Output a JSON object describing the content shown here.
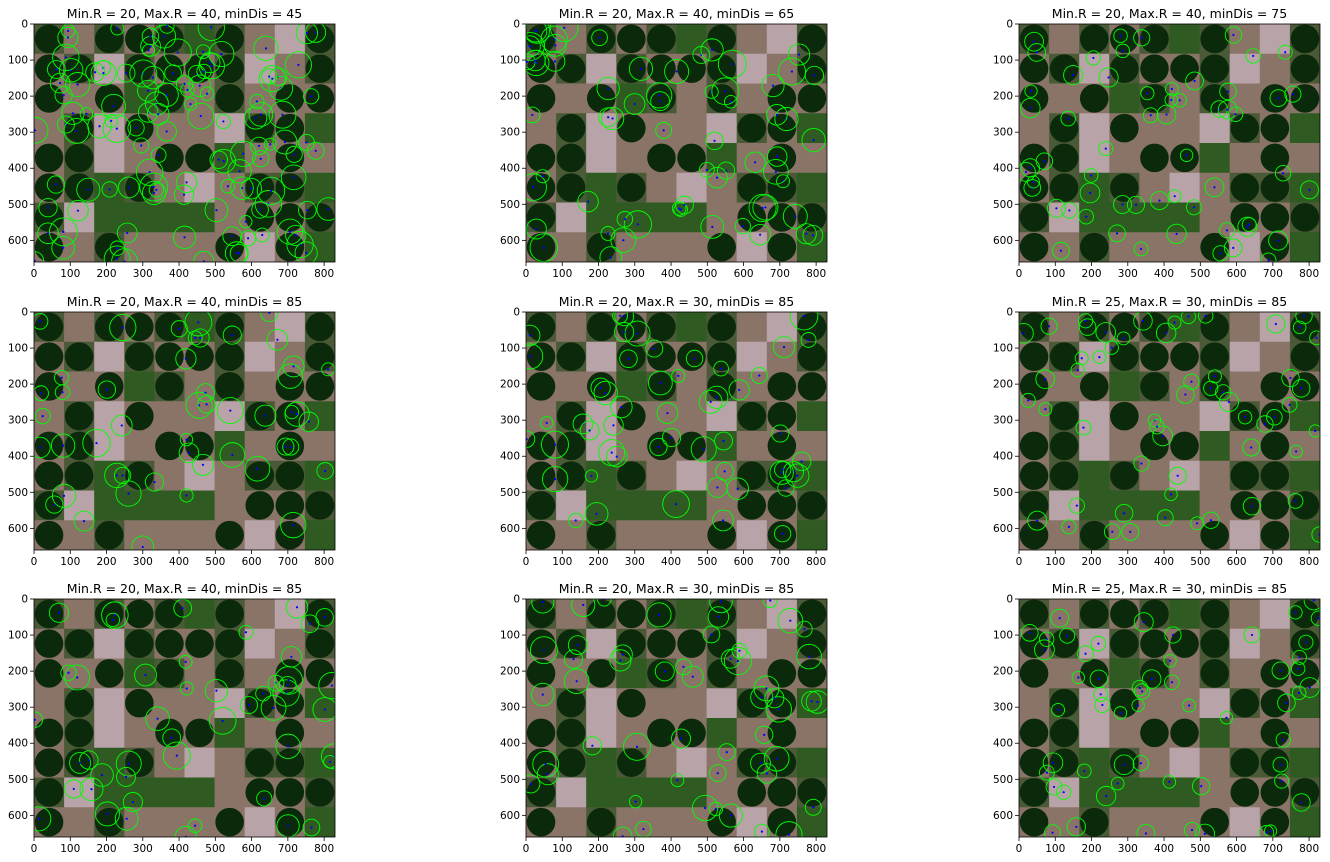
{
  "figure": {
    "panels": [
      {
        "title": "Min.R = 20, Max.R = 40, minDis = 45"
      },
      {
        "title": "Min.R = 20, Max.R = 40, minDis = 65"
      },
      {
        "title": "Min.R = 20, Max.R = 40, minDis = 75"
      },
      {
        "title": "Min.R = 20, Max.R = 40, minDis = 85"
      },
      {
        "title": "Min.R = 20, Max.R = 30, minDis = 85"
      },
      {
        "title": "Min.R = 25, Max.R = 30, minDis = 85"
      },
      {
        "title": "Min.R = 20, Max.R = 40, minDis = 85"
      },
      {
        "title": "Min.R = 20, Max.R = 30, minDis = 85"
      },
      {
        "title": "Min.R = 25, Max.R = 30, minDis = 85"
      }
    ],
    "x_ticks": [
      "0",
      "100",
      "200",
      "300",
      "400",
      "500",
      "600",
      "700",
      "800"
    ],
    "y_ticks": [
      "0",
      "100",
      "200",
      "300",
      "400",
      "500",
      "600"
    ],
    "image_extent": {
      "x_max": 830,
      "y_max": 660
    },
    "colors": {
      "circle": "#00ff00",
      "center": "#0000ff",
      "field_dark": "#0b2a0b",
      "field_green": "#2f5a22",
      "field_bare": "#8a7468",
      "field_light": "#b8a3a8"
    }
  }
}
